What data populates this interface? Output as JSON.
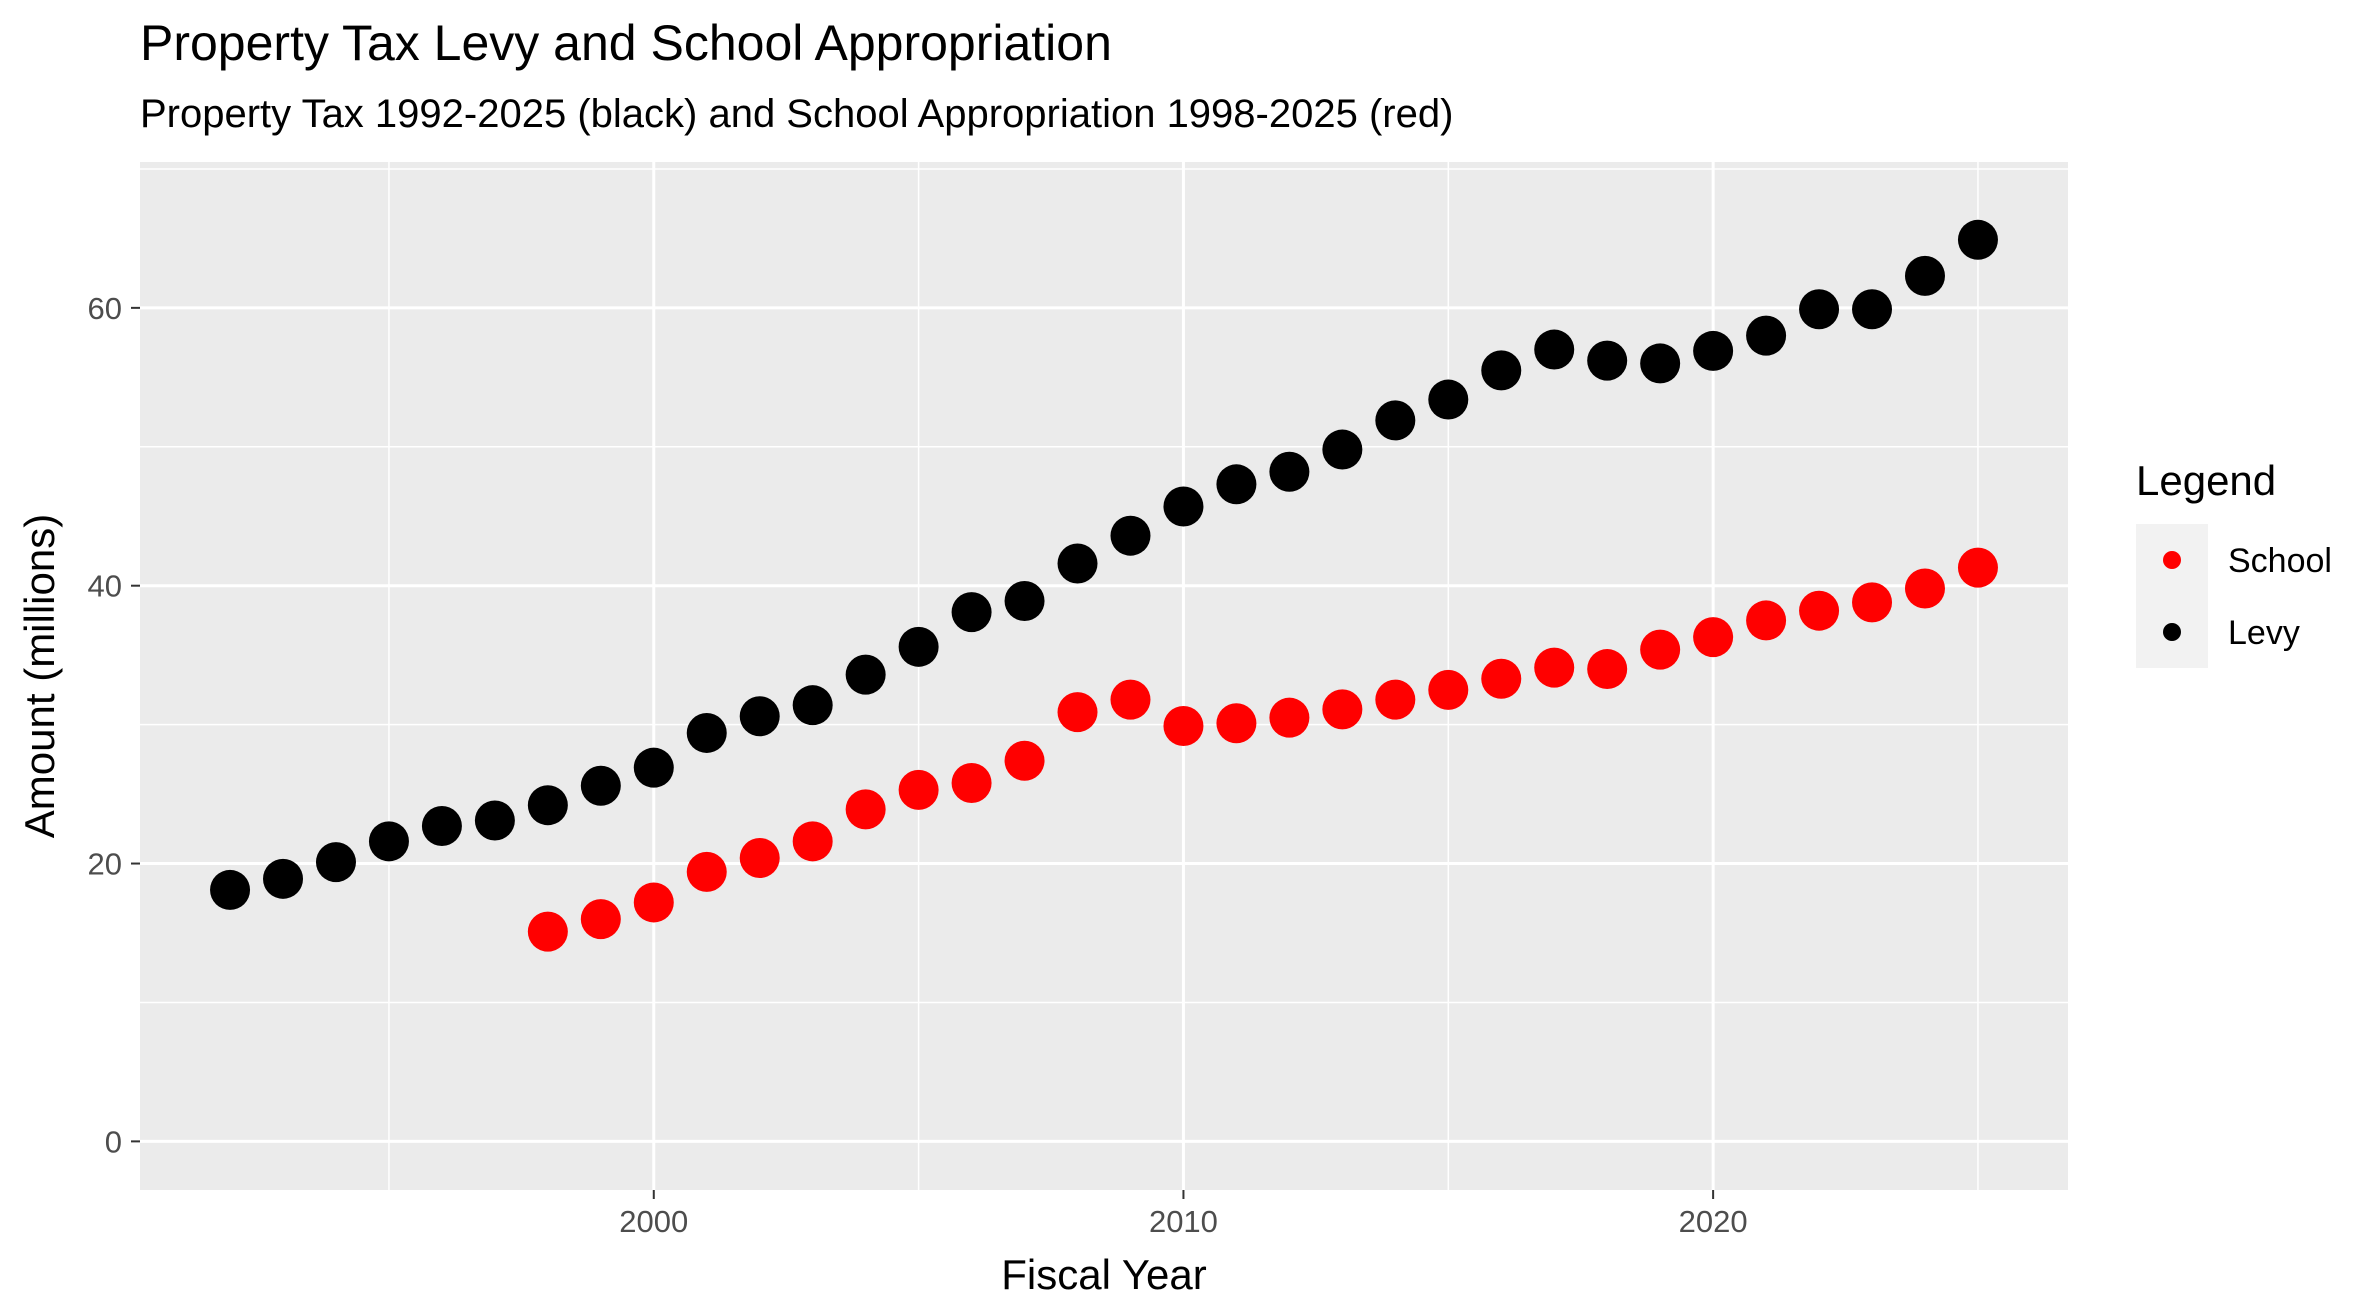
{
  "chart_data": {
    "type": "scatter",
    "title": "Property Tax Levy and School Appropriation",
    "subtitle": "Property Tax 1992-2025 (black) and School Appropriation 1998-2025 (red)",
    "xlabel": "Fiscal Year",
    "ylabel": "Amount (millions)",
    "xlim": [
      1990.3,
      2026.7
    ],
    "ylim": [
      -3.5,
      70.5
    ],
    "xticks": [
      2000,
      2010,
      2020
    ],
    "yticks": [
      0,
      20,
      40,
      60
    ],
    "grid": true,
    "legend": {
      "title": "Legend",
      "placement": "right",
      "entries": [
        {
          "label": "School",
          "color": "#ff0000"
        },
        {
          "label": "Levy",
          "color": "#000000"
        }
      ]
    },
    "series": [
      {
        "name": "Levy",
        "color": "#000000",
        "x": [
          1992,
          1993,
          1994,
          1995,
          1996,
          1997,
          1998,
          1999,
          2000,
          2001,
          2002,
          2003,
          2004,
          2005,
          2006,
          2007,
          2008,
          2009,
          2010,
          2011,
          2012,
          2013,
          2014,
          2015,
          2016,
          2017,
          2018,
          2019,
          2020,
          2021,
          2022,
          2023,
          2024,
          2025
        ],
        "values": [
          18.1,
          18.9,
          20.1,
          21.6,
          22.7,
          23.1,
          24.2,
          25.6,
          26.9,
          29.4,
          30.6,
          31.4,
          33.6,
          35.6,
          38.1,
          38.9,
          41.6,
          43.6,
          45.7,
          47.3,
          48.2,
          49.8,
          51.9,
          53.4,
          55.5,
          57.0,
          56.2,
          56.0,
          56.9,
          58.0,
          59.9,
          59.9,
          62.3,
          64.9
        ]
      },
      {
        "name": "School",
        "color": "#ff0000",
        "x": [
          1998,
          1999,
          2000,
          2001,
          2002,
          2003,
          2004,
          2005,
          2006,
          2007,
          2008,
          2009,
          2010,
          2011,
          2012,
          2013,
          2014,
          2015,
          2016,
          2017,
          2018,
          2019,
          2020,
          2021,
          2022,
          2023,
          2024,
          2025
        ],
        "values": [
          15.1,
          16.0,
          17.2,
          19.4,
          20.4,
          21.6,
          23.9,
          25.3,
          25.8,
          27.4,
          30.9,
          31.8,
          29.9,
          30.1,
          30.5,
          31.1,
          31.8,
          32.5,
          33.3,
          34.1,
          34.0,
          35.4,
          36.3,
          37.5,
          38.2,
          38.8,
          39.8,
          41.3
        ]
      }
    ]
  }
}
